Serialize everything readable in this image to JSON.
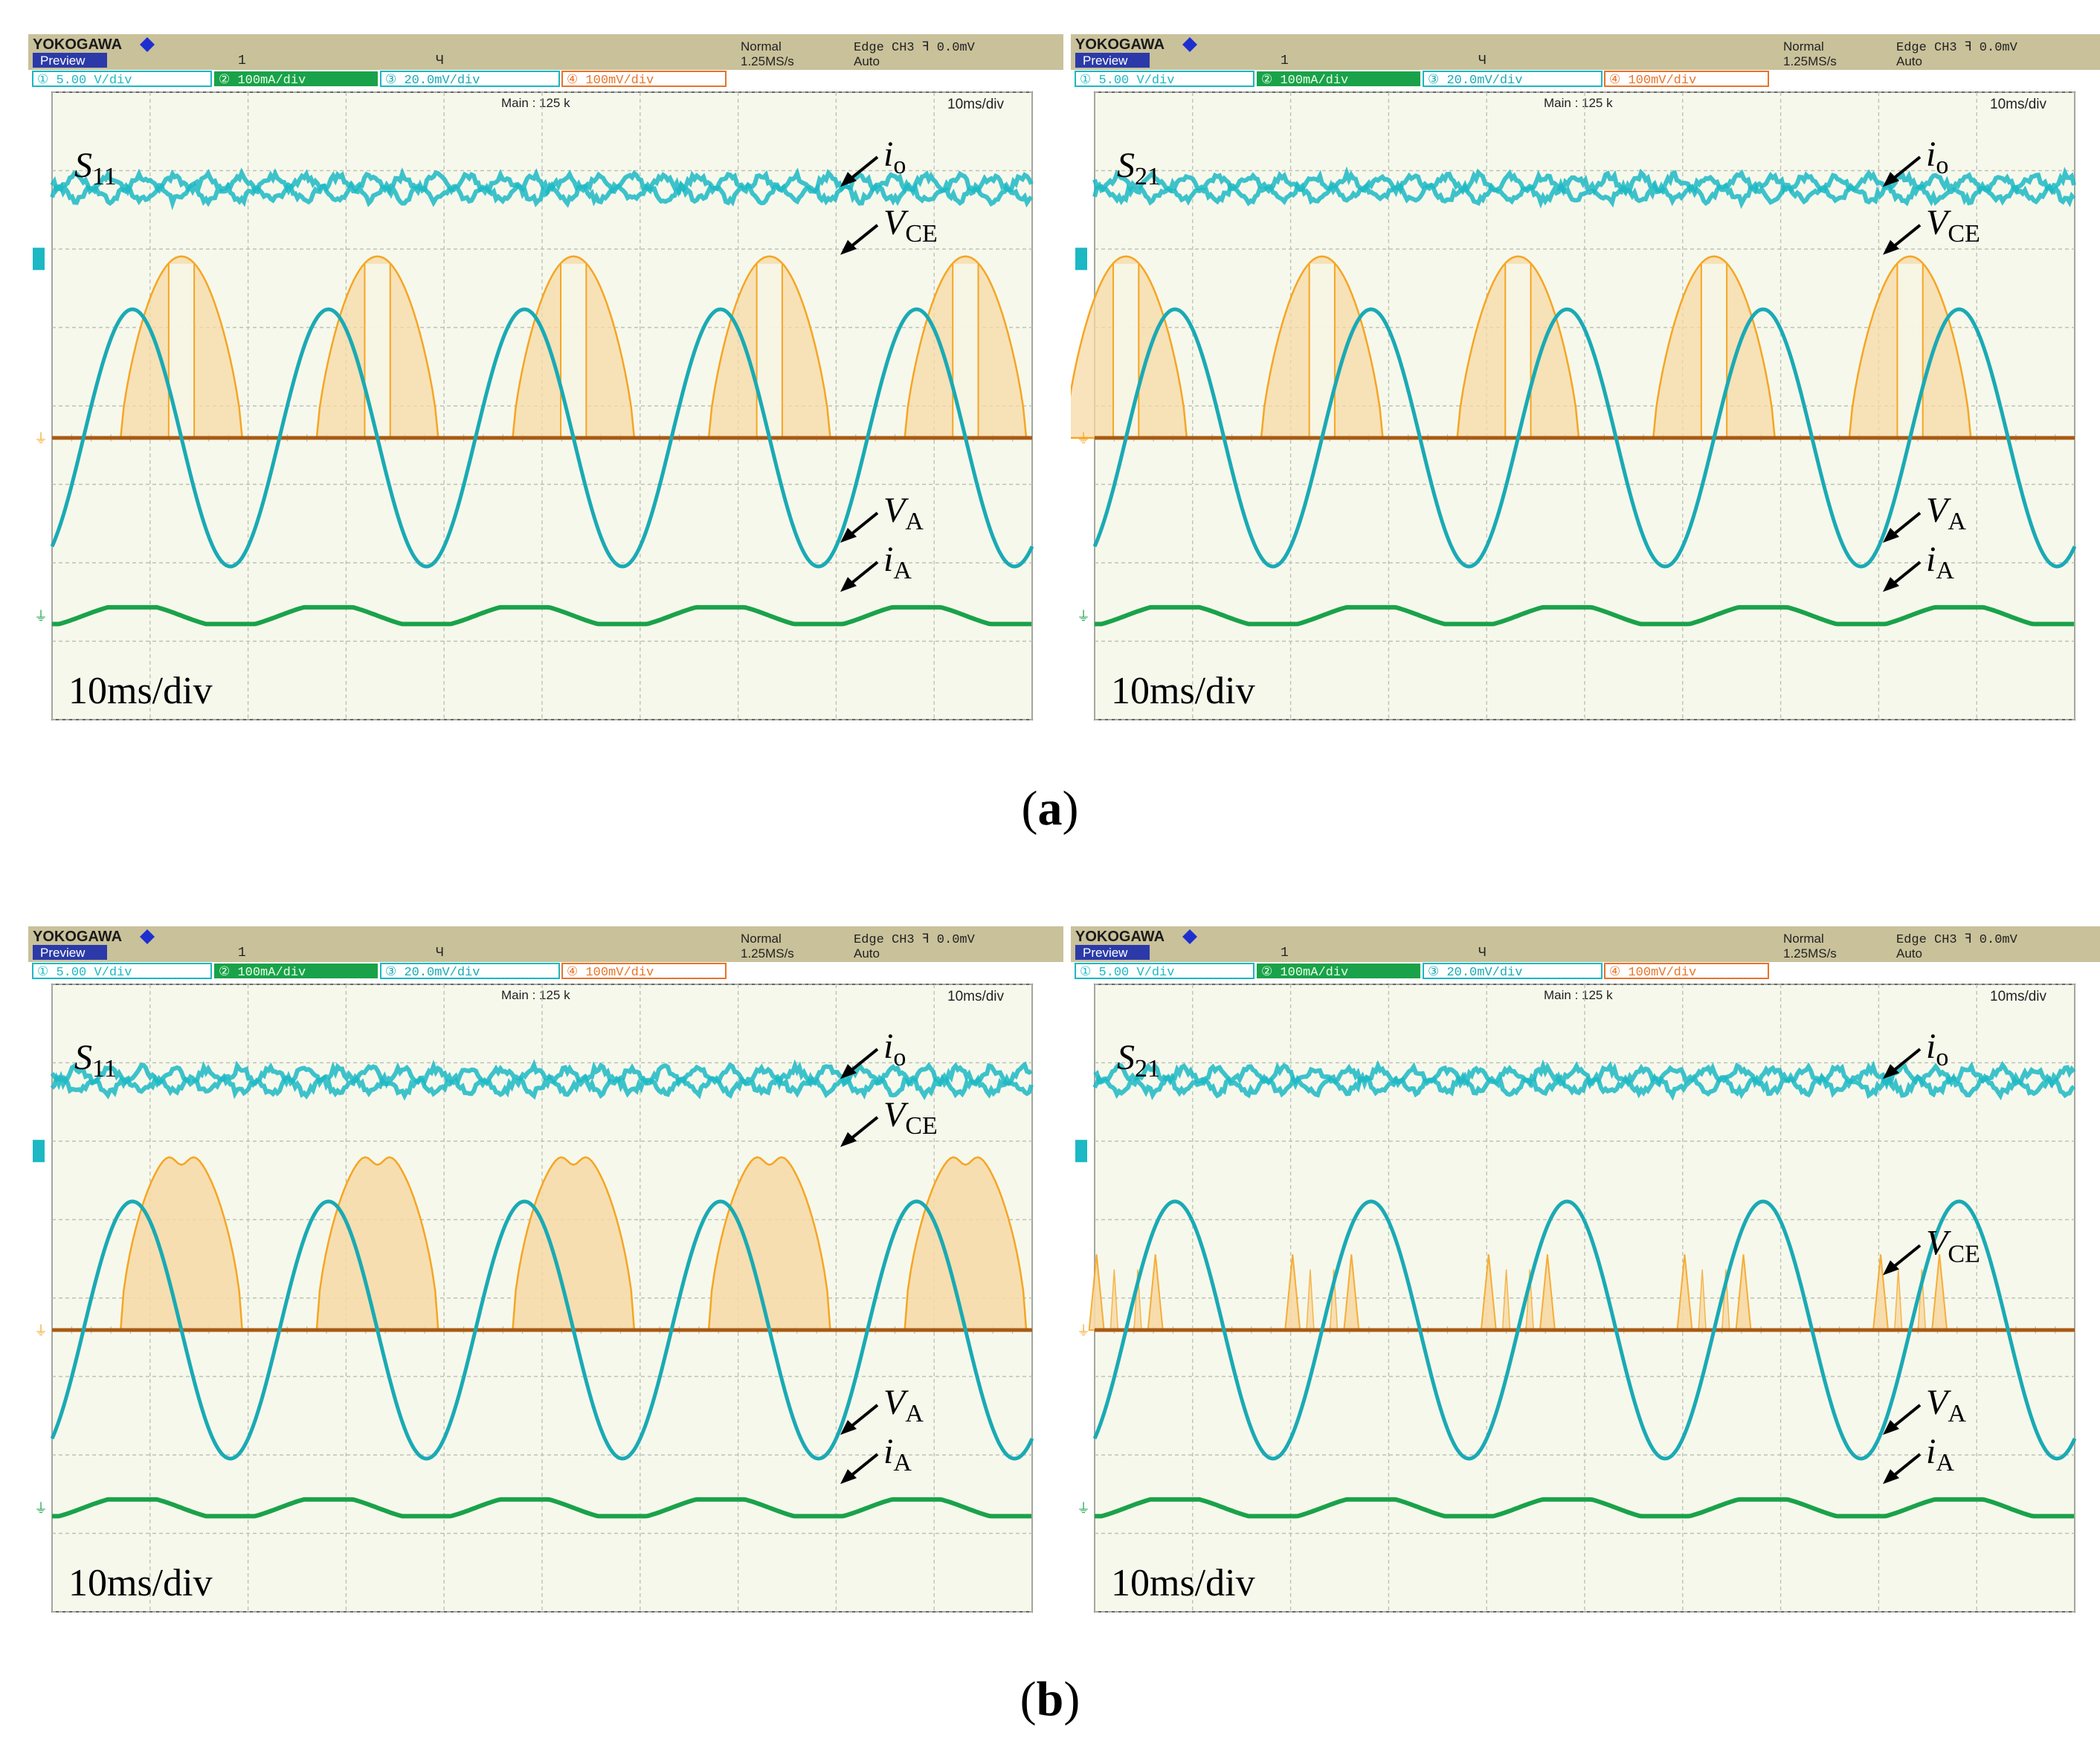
{
  "figure": {
    "captions": [
      {
        "open": "(",
        "letter": "a",
        "close": ")"
      },
      {
        "open": "(",
        "letter": "b",
        "close": ")"
      }
    ]
  },
  "colors": {
    "background": "#ffffff",
    "header_bar": "#c9c19a",
    "screen": "#f7f8ec",
    "grid": "#bcc2b6",
    "ch1_cyan": "#1cb8c4",
    "ch2_green": "#1aa24a",
    "ch3_sine": "#1aaab4",
    "ch4_orange": "#f5a623",
    "vce_fill": "#f7d9a6",
    "vce_base": "#a85a14",
    "brand_blue": "#1e2fd0"
  },
  "scope_header": {
    "brand": "YOKOGAWA",
    "mode_label": "Preview",
    "marker_1": "1",
    "marker_t": "Ч",
    "acq_mode": "Normal",
    "sample_rate": "1.25MS/s",
    "trigger": "Edge CH3 ꟻ 0.0mV",
    "trigger_mode": "Auto",
    "ch1": "①  5.00 V/div",
    "ch2": "②  100mA/div",
    "ch3": "③  20.0mV/div",
    "ch4": "④  100mV/div",
    "main_record": "Main : 125 k",
    "timebase_small": "10ms/div"
  },
  "chart_data": [
    {
      "type": "line",
      "panel": "a-left",
      "switch_label": {
        "base": "S",
        "sub": "11"
      },
      "timebase_label": "10ms/div",
      "x_range_ms": [
        0,
        100
      ],
      "divisions": {
        "x": 10,
        "y": 8
      },
      "series": [
        {
          "name": "io",
          "channel": 1,
          "level_div": 3.3,
          "ripple_div": 0.15
        },
        {
          "name": "VCE",
          "channel": 4,
          "level_div": 2.4,
          "pattern": "wide-double-hump",
          "pulse_centers_ms": [
            13.2,
            33.2,
            53.2,
            73.2,
            93.2
          ]
        },
        {
          "name": "VA",
          "channel": 3,
          "amplitude_div": 1.7,
          "frequency_hz": 50,
          "period_ms": 20
        },
        {
          "name": "iA",
          "channel": 2,
          "offset_div": -2.35,
          "amplitude_div": 0.13,
          "frequency_hz": 50
        }
      ],
      "annotations": [
        {
          "base": "i",
          "sub": "o"
        },
        {
          "base": "V",
          "sub": "CE"
        },
        {
          "base": "V",
          "sub": "A"
        },
        {
          "base": "i",
          "sub": "A"
        }
      ]
    },
    {
      "type": "line",
      "panel": "a-right",
      "switch_label": {
        "base": "S",
        "sub": "21"
      },
      "timebase_label": "10ms/div",
      "x_range_ms": [
        0,
        100
      ],
      "divisions": {
        "x": 10,
        "y": 8
      },
      "series": [
        {
          "name": "io",
          "channel": 1,
          "level_div": 3.3,
          "ripple_div": 0.15
        },
        {
          "name": "VCE",
          "channel": 4,
          "level_div": 2.4,
          "pattern": "double-narrow",
          "pulse_centers_ms": [
            3.2,
            23.2,
            43.2,
            63.2,
            83.2
          ]
        },
        {
          "name": "VA",
          "channel": 3,
          "amplitude_div": 1.7,
          "frequency_hz": 50,
          "period_ms": 20
        },
        {
          "name": "iA",
          "channel": 2,
          "offset_div": -2.35,
          "amplitude_div": 0.13,
          "frequency_hz": 50
        }
      ],
      "annotations": [
        {
          "base": "i",
          "sub": "o"
        },
        {
          "base": "V",
          "sub": "CE"
        },
        {
          "base": "V",
          "sub": "A"
        },
        {
          "base": "i",
          "sub": "A"
        }
      ]
    },
    {
      "type": "line",
      "panel": "b-left",
      "switch_label": {
        "base": "S",
        "sub": "11"
      },
      "timebase_label": "10ms/div",
      "x_range_ms": [
        0,
        100
      ],
      "divisions": {
        "x": 10,
        "y": 8
      },
      "series": [
        {
          "name": "io",
          "channel": 1,
          "level_div": 3.3,
          "ripple_div": 0.15
        },
        {
          "name": "VCE",
          "channel": 4,
          "level_div": 2.4,
          "pattern": "full-hump",
          "pulse_centers_ms": [
            13.2,
            33.2,
            53.2,
            73.2,
            93.2
          ]
        },
        {
          "name": "VA",
          "channel": 3,
          "amplitude_div": 1.7,
          "frequency_hz": 50,
          "period_ms": 20
        },
        {
          "name": "iA",
          "channel": 2,
          "offset_div": -2.35,
          "amplitude_div": 0.13,
          "frequency_hz": 50
        }
      ],
      "annotations": [
        {
          "base": "i",
          "sub": "o"
        },
        {
          "base": "V",
          "sub": "CE"
        },
        {
          "base": "V",
          "sub": "A"
        },
        {
          "base": "i",
          "sub": "A"
        }
      ]
    },
    {
      "type": "line",
      "panel": "b-right",
      "switch_label": {
        "base": "S",
        "sub": "21"
      },
      "timebase_label": "10ms/div",
      "x_range_ms": [
        0,
        100
      ],
      "divisions": {
        "x": 10,
        "y": 8
      },
      "series": [
        {
          "name": "io",
          "channel": 1,
          "level_div": 3.3,
          "ripple_div": 0.15
        },
        {
          "name": "VCE",
          "channel": 4,
          "level_div": 1.0,
          "pattern": "spikes",
          "pulse_centers_ms": [
            3.2,
            23.2,
            43.2,
            63.2,
            83.2
          ]
        },
        {
          "name": "VA",
          "channel": 3,
          "amplitude_div": 1.7,
          "frequency_hz": 50,
          "period_ms": 20
        },
        {
          "name": "iA",
          "channel": 2,
          "offset_div": -2.35,
          "amplitude_div": 0.13,
          "frequency_hz": 50
        }
      ],
      "annotations": [
        {
          "base": "i",
          "sub": "o"
        },
        {
          "base": "V",
          "sub": "CE"
        },
        {
          "base": "V",
          "sub": "A"
        },
        {
          "base": "i",
          "sub": "A"
        }
      ]
    }
  ]
}
